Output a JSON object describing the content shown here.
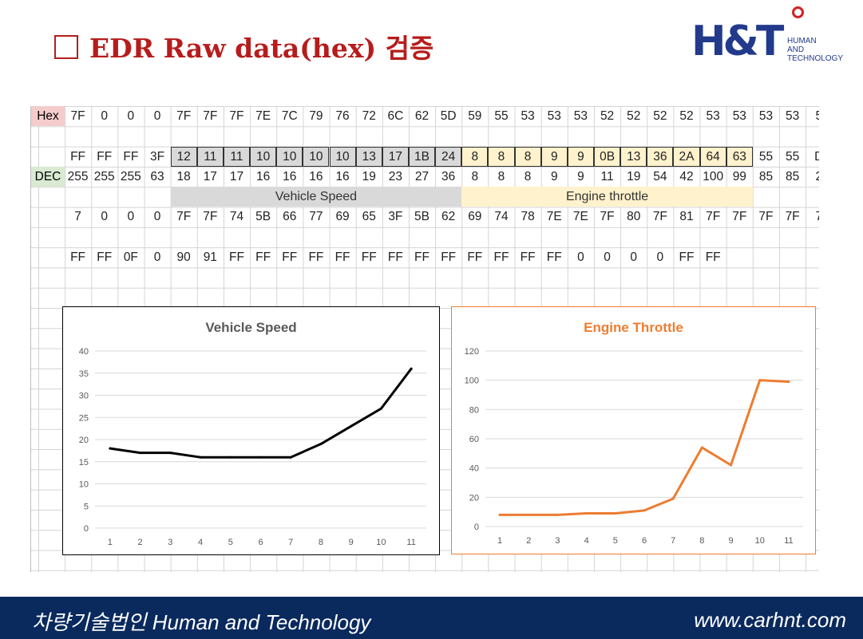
{
  "slide": {
    "title": "EDR  Raw data(hex) 검증",
    "logo": {
      "mark_letters": "H&T",
      "line1": "HUMAN",
      "line2": "AND",
      "line3": "TECHNOLOGY"
    },
    "footer_left": "차량기술법인 Human and Technology",
    "footer_right": "www.carhnt.com"
  },
  "colors": {
    "title": "#b71c1c",
    "footer_bg": "#0a2a5e",
    "logo_blue": "#223a8c",
    "logo_red": "#d32027",
    "hex_label_bg": "#f4cccc",
    "dec_label_bg": "#d9ead3",
    "speed_band": "#d9d9d9",
    "throttle_band": "#fff2cc",
    "speed_line": "#000000",
    "throttle_line": "#ed7d31"
  },
  "spreadsheet": {
    "hex_label": "Hex",
    "dec_label": "DEC",
    "row_hex": [
      "7F",
      "0",
      "0",
      "0",
      "7F",
      "7F",
      "7F",
      "7E",
      "7C",
      "79",
      "76",
      "72",
      "6C",
      "62",
      "5D",
      "59",
      "55",
      "53",
      "53",
      "53",
      "52",
      "52",
      "52",
      "52",
      "53",
      "53",
      "53",
      "53",
      "5"
    ],
    "row_raw": [
      "FF",
      "FF",
      "FF",
      "3F",
      "12",
      "11",
      "11",
      "10",
      "10",
      "10",
      "10",
      "13",
      "17",
      "1B",
      "24",
      "8",
      "8",
      "8",
      "9",
      "9",
      "0B",
      "13",
      "36",
      "2A",
      "64",
      "63",
      "55",
      "55",
      "D"
    ],
    "row_dec": [
      "255",
      "255",
      "255",
      "63",
      "18",
      "17",
      "17",
      "16",
      "16",
      "16",
      "16",
      "19",
      "23",
      "27",
      "36",
      "8",
      "8",
      "8",
      "9",
      "9",
      "11",
      "19",
      "54",
      "42",
      "100",
      "99",
      "85",
      "85",
      "2"
    ],
    "band_speed": "Vehicle Speed",
    "band_throttle": "Engine throttle",
    "row_4": [
      "7",
      "0",
      "0",
      "0",
      "7F",
      "7F",
      "74",
      "5B",
      "66",
      "77",
      "69",
      "65",
      "3F",
      "5B",
      "62",
      "69",
      "74",
      "78",
      "7E",
      "7E",
      "7F",
      "80",
      "7F",
      "81",
      "7F",
      "7F",
      "7F",
      "7F",
      "7"
    ],
    "row_5": [
      "FF",
      "FF",
      "0F",
      "0",
      "90",
      "91",
      "FF",
      "FF",
      "FF",
      "FF",
      "FF",
      "FF",
      "FF",
      "FF",
      "FF",
      "FF",
      "FF",
      "FF",
      "FF",
      "0",
      "0",
      "0",
      "0",
      "FF",
      "FF",
      "",
      "",
      "",
      ""
    ]
  },
  "chart_data": [
    {
      "type": "line",
      "title": "Vehicle Speed",
      "categories": [
        "1",
        "2",
        "3",
        "4",
        "5",
        "6",
        "7",
        "8",
        "9",
        "10",
        "11"
      ],
      "series": [
        {
          "values": [
            18,
            17,
            17,
            16,
            16,
            16,
            16,
            19,
            23,
            27,
            36
          ]
        }
      ],
      "ylim": [
        0,
        40
      ],
      "yticks": [
        "0",
        "5",
        "10",
        "15",
        "20",
        "25",
        "30",
        "35",
        "40"
      ],
      "grid": true,
      "legend": "none",
      "line_color": "#000000"
    },
    {
      "type": "line",
      "title": "Engine Throttle",
      "categories": [
        "1",
        "2",
        "3",
        "4",
        "5",
        "6",
        "7",
        "8",
        "9",
        "10",
        "11"
      ],
      "series": [
        {
          "values": [
            8,
            8,
            8,
            9,
            9,
            11,
            19,
            54,
            42,
            100,
            99
          ]
        }
      ],
      "ylim": [
        0,
        120
      ],
      "yticks": [
        "0",
        "20",
        "40",
        "60",
        "80",
        "100",
        "120"
      ],
      "grid": true,
      "legend": "none",
      "line_color": "#ed7d31"
    }
  ]
}
